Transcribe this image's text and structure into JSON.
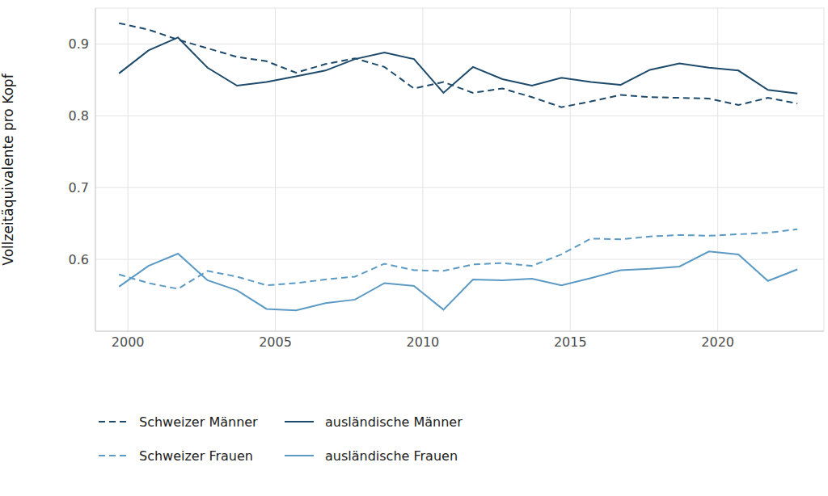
{
  "chart_data": {
    "type": "line",
    "y_label": "Vollzeitäquivalente pro Kopf",
    "x": [
      1999.7,
      2000.7,
      2001.7,
      2002.7,
      2003.7,
      2004.7,
      2005.7,
      2006.7,
      2007.7,
      2008.7,
      2009.7,
      2010.7,
      2011.7,
      2012.7,
      2013.7,
      2014.7,
      2015.7,
      2016.7,
      2017.7,
      2018.7,
      2019.7,
      2020.7,
      2021.7,
      2022.7
    ],
    "xlim": [
      1998.9,
      2023.6
    ],
    "xticks": [
      2000,
      2005,
      2010,
      2015,
      2020
    ],
    "ylim": [
      0.5,
      0.95
    ],
    "yticks": [
      0.6,
      0.7,
      0.8,
      0.9
    ],
    "grid": true,
    "legend": "bottom",
    "series": [
      {
        "name": "Schweizer Männer",
        "color": "#1d4a6b",
        "line_style": "dashed",
        "values": [
          0.929,
          0.92,
          0.906,
          0.894,
          0.882,
          0.876,
          0.86,
          0.872,
          0.88,
          0.868,
          0.838,
          0.847,
          0.832,
          0.838,
          0.826,
          0.812,
          0.82,
          0.829,
          0.826,
          0.825,
          0.824,
          0.815,
          0.825,
          0.817
        ]
      },
      {
        "name": "ausländische Männer",
        "color": "#1d4a6b",
        "line_style": "solid",
        "values": [
          0.859,
          0.891,
          0.909,
          0.867,
          0.842,
          0.847,
          0.855,
          0.863,
          0.879,
          0.888,
          0.879,
          0.832,
          0.868,
          0.851,
          0.842,
          0.853,
          0.847,
          0.843,
          0.864,
          0.873,
          0.867,
          0.863,
          0.836,
          0.831
        ]
      },
      {
        "name": "Schweizer Frauen",
        "color": "#5b9ac4",
        "line_style": "dashed",
        "values": [
          0.579,
          0.567,
          0.559,
          0.584,
          0.576,
          0.564,
          0.567,
          0.572,
          0.576,
          0.594,
          0.585,
          0.584,
          0.593,
          0.595,
          0.591,
          0.607,
          0.629,
          0.628,
          0.632,
          0.634,
          0.633,
          0.635,
          0.637,
          0.642
        ]
      },
      {
        "name": "ausländische Frauen",
        "color": "#5b9ac4",
        "line_style": "solid",
        "values": [
          0.562,
          0.591,
          0.608,
          0.571,
          0.557,
          0.531,
          0.529,
          0.539,
          0.544,
          0.567,
          0.563,
          0.53,
          0.572,
          0.571,
          0.573,
          0.564,
          0.574,
          0.585,
          0.587,
          0.59,
          0.611,
          0.607,
          0.57,
          0.586
        ]
      }
    ]
  }
}
